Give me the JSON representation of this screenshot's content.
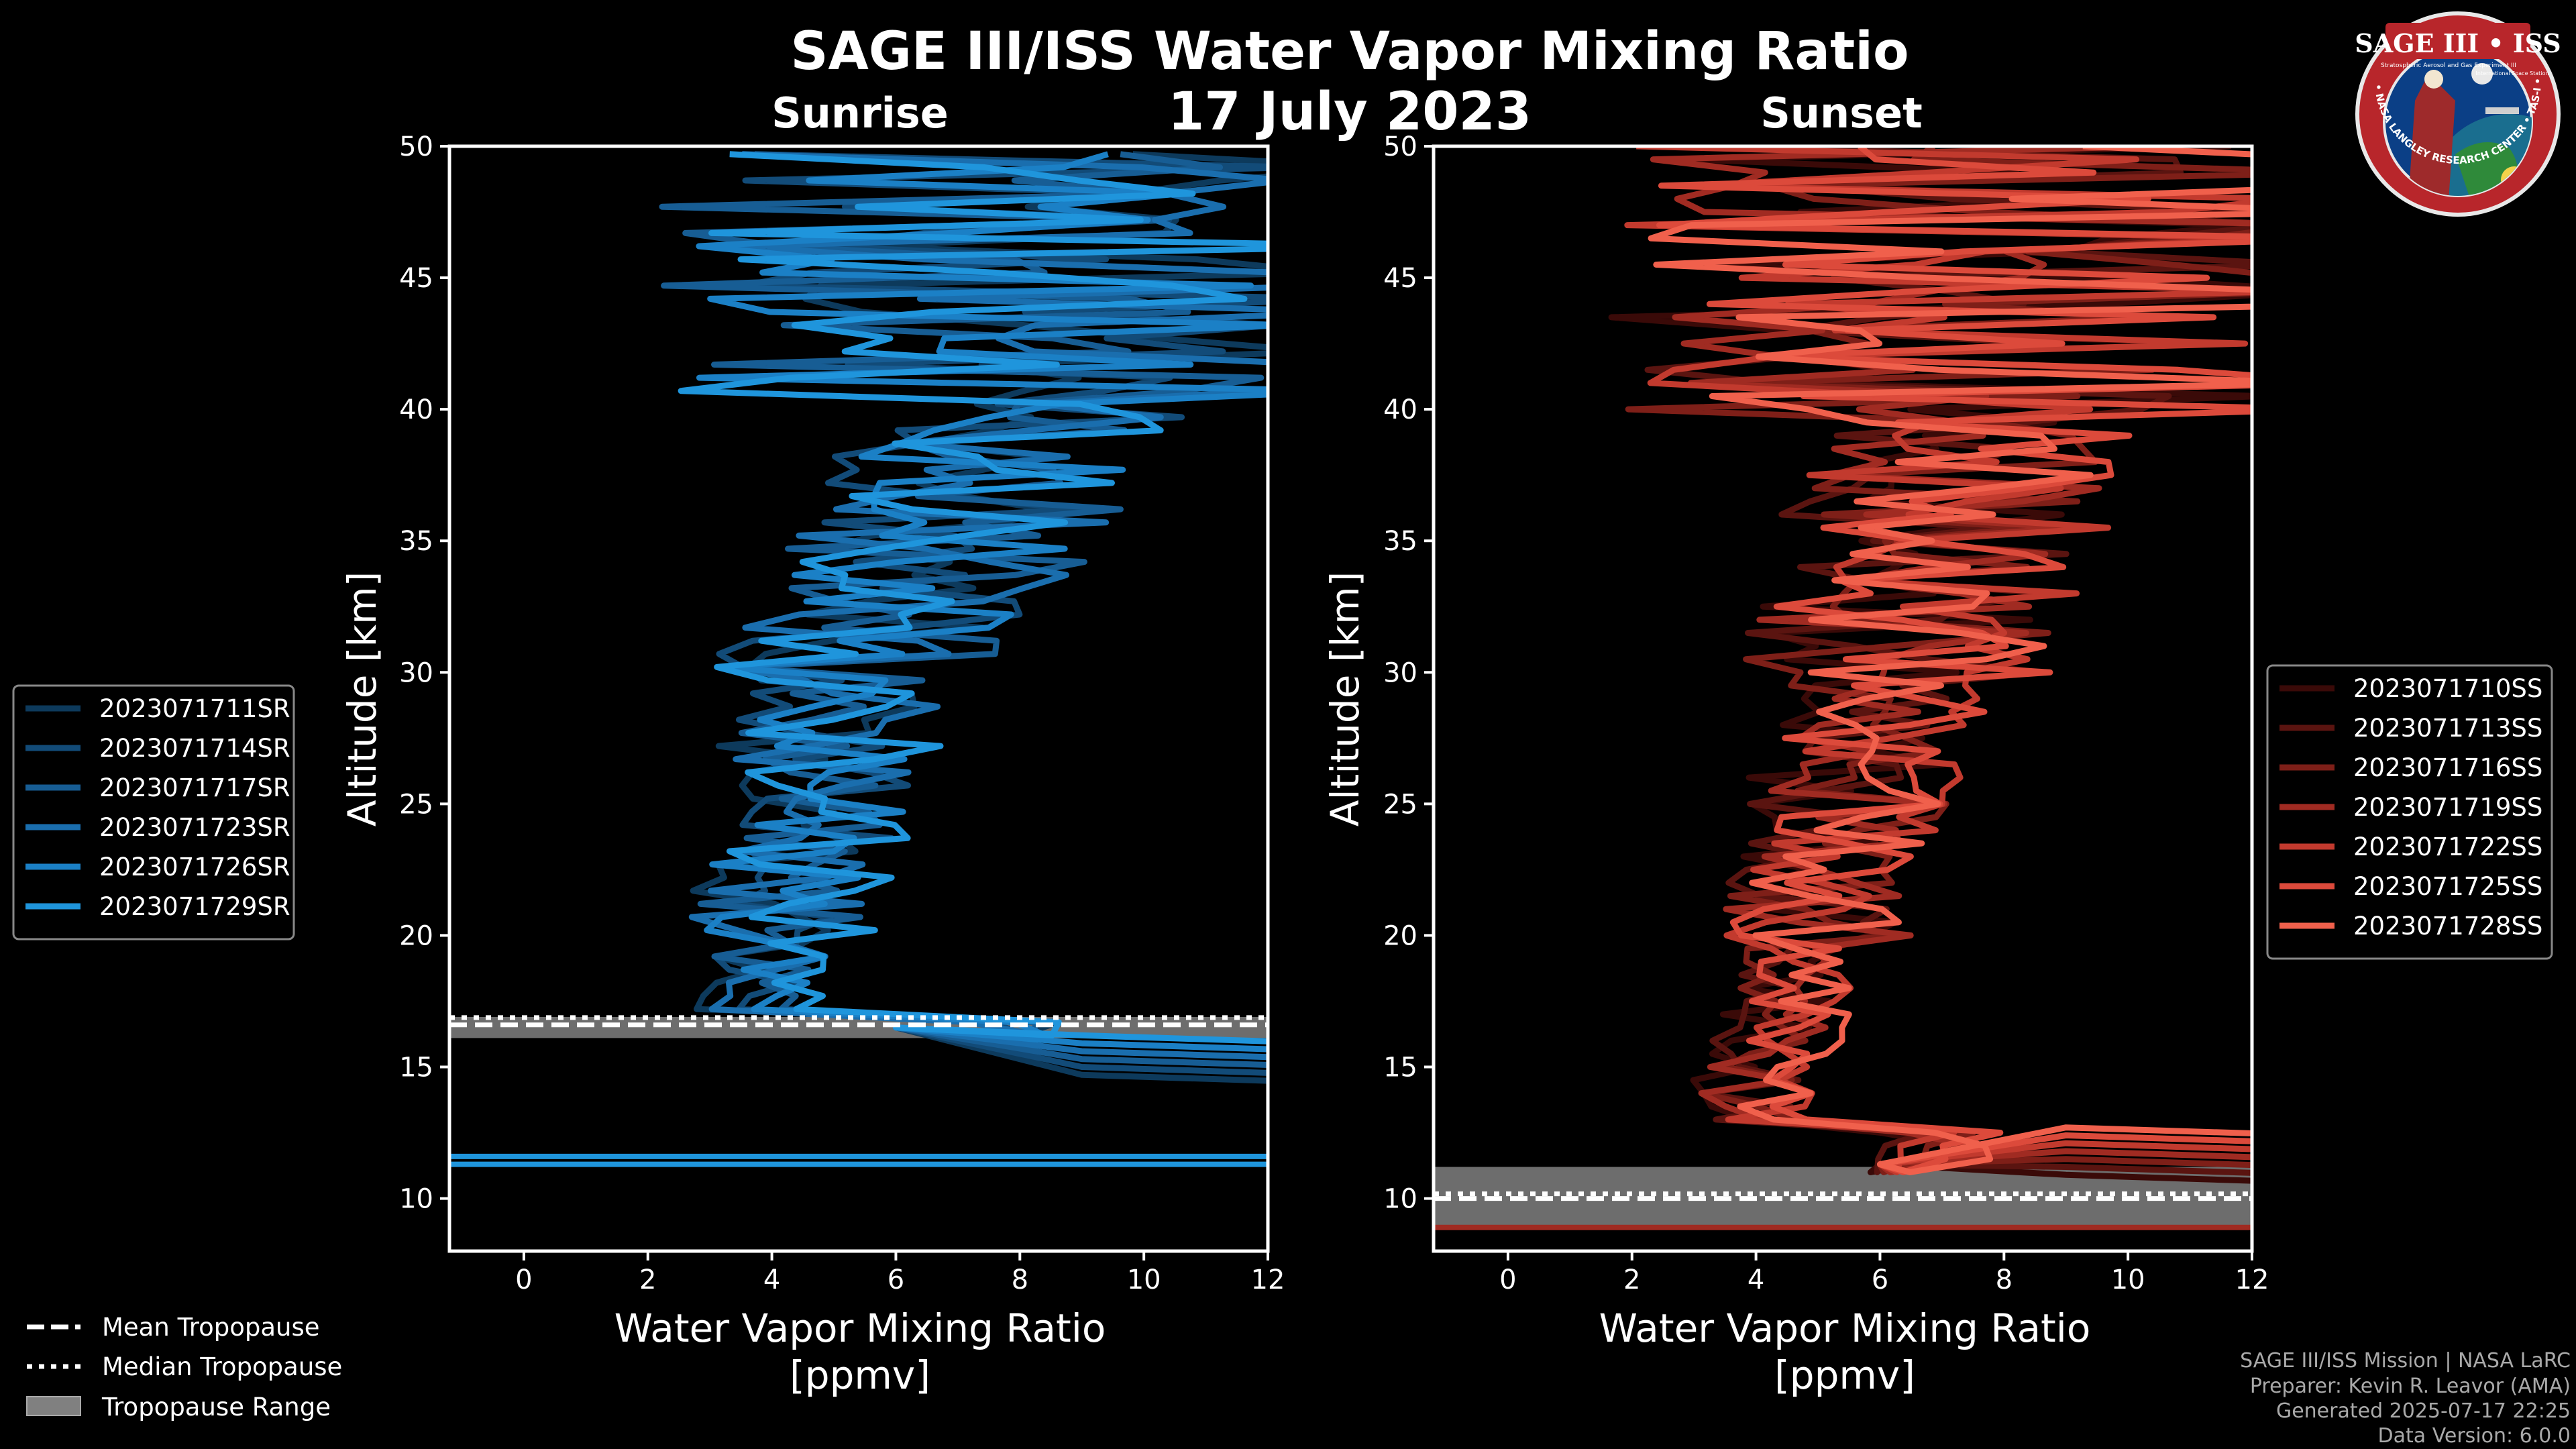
{
  "title": "SAGE III/ISS Water Vapor Mixing Ratio",
  "date": "17 July 2023",
  "logo": {
    "title": "SAGE III • ISS",
    "line1": "Stratospheric Aerosol and Gas Experiment III",
    "line2": "International Space Station",
    "ring": "BALL • NASA LANGLEY RESEARCH CENTER • TAS-I • ESA",
    "colors": {
      "ring": "#b8262b",
      "inner": "#0b3f86"
    }
  },
  "footer": [
    "SAGE III/ISS Mission | NASA LaRC",
    "Preparer: Kevin R. Leavor (AMA)",
    "Generated 2025-07-17 22:25",
    "Data Version: 6.0.0"
  ],
  "tropopause_legend": [
    {
      "label": "Mean Tropopause",
      "style": "dashed"
    },
    {
      "label": "Median Tropopause",
      "style": "dotted"
    },
    {
      "label": "Tropopause Range",
      "style": "patch"
    }
  ],
  "chart_data": [
    {
      "type": "line",
      "title": "Sunrise",
      "xlabel": "Water Vapor Mixing Ratio\n[ppmv]",
      "ylabel": "Altitude [km]",
      "xlim": [
        -1.2,
        12
      ],
      "ylim": [
        8,
        50
      ],
      "xticks": [
        0,
        2,
        4,
        6,
        8,
        10,
        12
      ],
      "yticks": [
        10,
        15,
        20,
        25,
        30,
        35,
        40,
        45,
        50
      ],
      "series": [
        {
          "name": "2023071711SR",
          "color": "#0d3a5c"
        },
        {
          "name": "2023071714SR",
          "color": "#124b78"
        },
        {
          "name": "2023071717SR",
          "color": "#175d94"
        },
        {
          "name": "2023071723SR",
          "color": "#1a6eae"
        },
        {
          "name": "2023071726SR",
          "color": "#1b80c6"
        },
        {
          "name": "2023071729SR",
          "color": "#1f95dc"
        }
      ],
      "tropopause": {
        "mean": 16.6,
        "median": 16.7,
        "range": [
          16.1,
          16.9
        ]
      },
      "lower_lines": [
        11.3,
        11.6
      ],
      "lower_color": "#1f95dc",
      "range_color": "#808080"
    },
    {
      "type": "line",
      "title": "Sunset",
      "xlabel": "Water Vapor Mixing Ratio\n[ppmv]",
      "ylabel": "Altitude [km]",
      "xlim": [
        -1.2,
        12
      ],
      "ylim": [
        8,
        50
      ],
      "xticks": [
        0,
        2,
        4,
        6,
        8,
        10,
        12
      ],
      "yticks": [
        10,
        15,
        20,
        25,
        30,
        35,
        40,
        45,
        50
      ],
      "series": [
        {
          "name": "2023071710SS",
          "color": "#3a0a08"
        },
        {
          "name": "2023071713SS",
          "color": "#5a1410"
        },
        {
          "name": "2023071716SS",
          "color": "#7e1f18"
        },
        {
          "name": "2023071719SS",
          "color": "#a02b22"
        },
        {
          "name": "2023071722SS",
          "color": "#c23a2e"
        },
        {
          "name": "2023071725SS",
          "color": "#dc4a3b"
        },
        {
          "name": "2023071728SS",
          "color": "#f0604c"
        }
      ],
      "tropopause": {
        "mean": 10.0,
        "median": 10.0,
        "range": [
          8.9,
          11.2
        ]
      },
      "lower_lines": [
        8.9
      ],
      "lower_color": "#a02b22",
      "range_color": "#808080"
    }
  ]
}
